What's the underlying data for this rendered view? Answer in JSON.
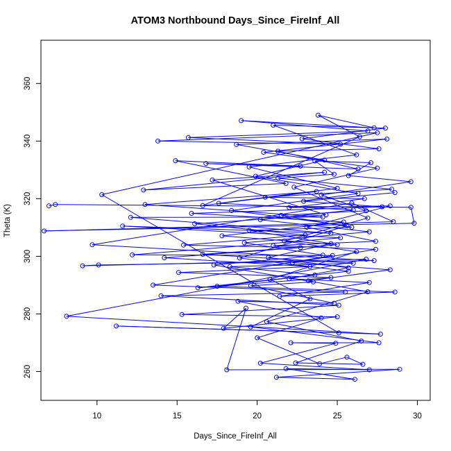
{
  "chart_data": {
    "type": "scatter",
    "title": "ATOM3 Northbound Days_Since_FireInf_All",
    "xlabel": "Days_Since_FireInf_All",
    "ylabel": "Theta (K)",
    "xlim": [
      6.5,
      30.8
    ],
    "ylim": [
      250,
      375
    ],
    "xticks": [
      "10",
      "15",
      "20",
      "25",
      "30"
    ],
    "yticks": [
      "260",
      "280",
      "300",
      "320",
      "340",
      "360"
    ],
    "grid": false,
    "legend": "none",
    "series": [
      {
        "color": "#0000ff",
        "mode": "lines+markers",
        "points": [
          [
            7.0,
            317.5
          ],
          [
            7.4,
            318.0
          ],
          [
            29.6,
            317.0
          ],
          [
            29.8,
            311.5
          ],
          [
            6.7,
            308.8
          ],
          [
            28.5,
            312.0
          ],
          [
            25.9,
            318.5
          ],
          [
            9.7,
            304.0
          ],
          [
            27.3,
            298.5
          ],
          [
            10.1,
            297.0
          ],
          [
            9.1,
            296.7
          ],
          [
            26.8,
            299.0
          ],
          [
            8.1,
            279.2
          ],
          [
            27.7,
            273.0
          ],
          [
            11.2,
            275.8
          ],
          [
            25.1,
            273.4
          ],
          [
            10.3,
            321.4
          ],
          [
            27.5,
            342.9
          ],
          [
            13.8,
            340.0
          ],
          [
            25.2,
            338.9
          ],
          [
            15.7,
            341.2
          ],
          [
            26.9,
            343.5
          ],
          [
            19.0,
            347.1
          ],
          [
            27.3,
            344.6
          ],
          [
            23.8,
            349.0
          ],
          [
            26.4,
            341.5
          ],
          [
            16.6,
            317.6
          ],
          [
            23.7,
            322.5
          ],
          [
            13.0,
            318.0
          ],
          [
            24.1,
            313.6
          ],
          [
            12.1,
            313.5
          ],
          [
            24.6,
            308.0
          ],
          [
            11.6,
            310.5
          ],
          [
            25.2,
            306.4
          ],
          [
            12.2,
            300.5
          ],
          [
            24.7,
            300.3
          ],
          [
            13.5,
            290.0
          ],
          [
            25.5,
            287.6
          ],
          [
            14.0,
            286.3
          ],
          [
            25.1,
            283.0
          ],
          [
            15.3,
            279.8
          ],
          [
            25.0,
            279.0
          ],
          [
            17.9,
            275.0
          ],
          [
            19.3,
            282.0
          ],
          [
            18.1,
            260.6
          ],
          [
            28.9,
            260.8
          ],
          [
            21.2,
            258.0
          ],
          [
            26.1,
            257.3
          ],
          [
            21.8,
            261.0
          ],
          [
            27.0,
            260.6
          ],
          [
            20.2,
            262.9
          ],
          [
            24.9,
            269.8
          ],
          [
            22.1,
            270.0
          ],
          [
            27.6,
            270.0
          ],
          [
            19.6,
            275.5
          ],
          [
            23.3,
            285.2
          ],
          [
            20.8,
            292.0
          ],
          [
            26.2,
            301.6
          ],
          [
            21.7,
            305.3
          ],
          [
            26.9,
            313.3
          ],
          [
            22.3,
            324.0
          ],
          [
            27.5,
            330.6
          ],
          [
            20.4,
            336.1
          ],
          [
            28.1,
            340.7
          ],
          [
            18.7,
            338.8
          ],
          [
            24.2,
            333.4
          ],
          [
            19.9,
            327.8
          ],
          [
            26.3,
            321.8
          ],
          [
            18.4,
            315.9
          ],
          [
            25.6,
            310.6
          ],
          [
            18.9,
            299.4
          ],
          [
            25.7,
            294.8
          ],
          [
            16.3,
            289.1
          ],
          [
            24.6,
            292.6
          ],
          [
            15.1,
            294.4
          ],
          [
            23.3,
            296.4
          ],
          [
            14.2,
            299.5
          ],
          [
            22.7,
            303.0
          ],
          [
            15.4,
            303.9
          ],
          [
            23.0,
            307.4
          ],
          [
            16.1,
            311.3
          ],
          [
            24.3,
            314.4
          ],
          [
            17.2,
            326.5
          ],
          [
            24.2,
            329.2
          ],
          [
            12.9,
            323.0
          ],
          [
            21.8,
            325.3
          ],
          [
            14.9,
            333.2
          ],
          [
            22.7,
            331.3
          ],
          [
            16.8,
            332.2
          ],
          [
            26.3,
            330.3
          ],
          [
            21.3,
            336.5
          ],
          [
            27.6,
            337.3
          ],
          [
            22.8,
            340.8
          ],
          [
            28.0,
            344.5
          ],
          [
            21.0,
            345.5
          ],
          [
            26.2,
            335.2
          ],
          [
            19.5,
            331.0
          ],
          [
            25.0,
            323.6
          ],
          [
            17.6,
            318.4
          ],
          [
            26.0,
            316.1
          ],
          [
            20.2,
            312.7
          ],
          [
            27.0,
            308.5
          ],
          [
            19.2,
            304.7
          ],
          [
            24.1,
            300.4
          ],
          [
            17.3,
            297.0
          ],
          [
            23.5,
            291.1
          ],
          [
            19.6,
            289.8
          ],
          [
            24.8,
            283.7
          ],
          [
            18.8,
            284.4
          ],
          [
            24.0,
            278.6
          ],
          [
            20.0,
            271.7
          ],
          [
            23.9,
            262.7
          ],
          [
            25.6,
            265.0
          ],
          [
            26.6,
            262.5
          ],
          [
            22.4,
            263.0
          ],
          [
            26.5,
            270.6
          ],
          [
            20.6,
            277.3
          ],
          [
            26.9,
            287.7
          ],
          [
            23.2,
            291.5
          ],
          [
            28.3,
            295.3
          ],
          [
            22.2,
            297.8
          ],
          [
            27.4,
            302.4
          ],
          [
            21.0,
            303.7
          ],
          [
            27.4,
            305.2
          ],
          [
            23.1,
            310.1
          ],
          [
            28.3,
            317.5
          ],
          [
            22.0,
            316.9
          ],
          [
            26.7,
            320.0
          ],
          [
            20.5,
            320.5
          ],
          [
            28.4,
            323.3
          ],
          [
            21.3,
            327.1
          ],
          [
            24.8,
            328.5
          ],
          [
            23.6,
            333.1
          ],
          [
            27.1,
            332.5
          ],
          [
            25.7,
            328.0
          ],
          [
            29.6,
            325.9
          ],
          [
            24.0,
            321.3
          ],
          [
            26.8,
            315.8
          ],
          [
            21.5,
            314.2
          ],
          [
            25.9,
            310.1
          ],
          [
            19.5,
            309.0
          ],
          [
            24.6,
            304.4
          ],
          [
            20.7,
            299.6
          ],
          [
            25.7,
            296.0
          ],
          [
            22.0,
            292.2
          ],
          [
            27.0,
            290.9
          ],
          [
            21.4,
            286.1
          ],
          [
            28.6,
            287.6
          ],
          [
            17.5,
            289.6
          ],
          [
            23.6,
            293.5
          ],
          [
            18.3,
            296.4
          ],
          [
            26.0,
            297.6
          ],
          [
            16.6,
            300.7
          ],
          [
            25.0,
            304.0
          ],
          [
            17.8,
            307.1
          ],
          [
            25.4,
            311.9
          ],
          [
            15.9,
            314.9
          ],
          [
            27.8,
            317.2
          ],
          [
            22.9,
            319.1
          ],
          [
            28.6,
            322.1
          ]
        ]
      }
    ]
  }
}
